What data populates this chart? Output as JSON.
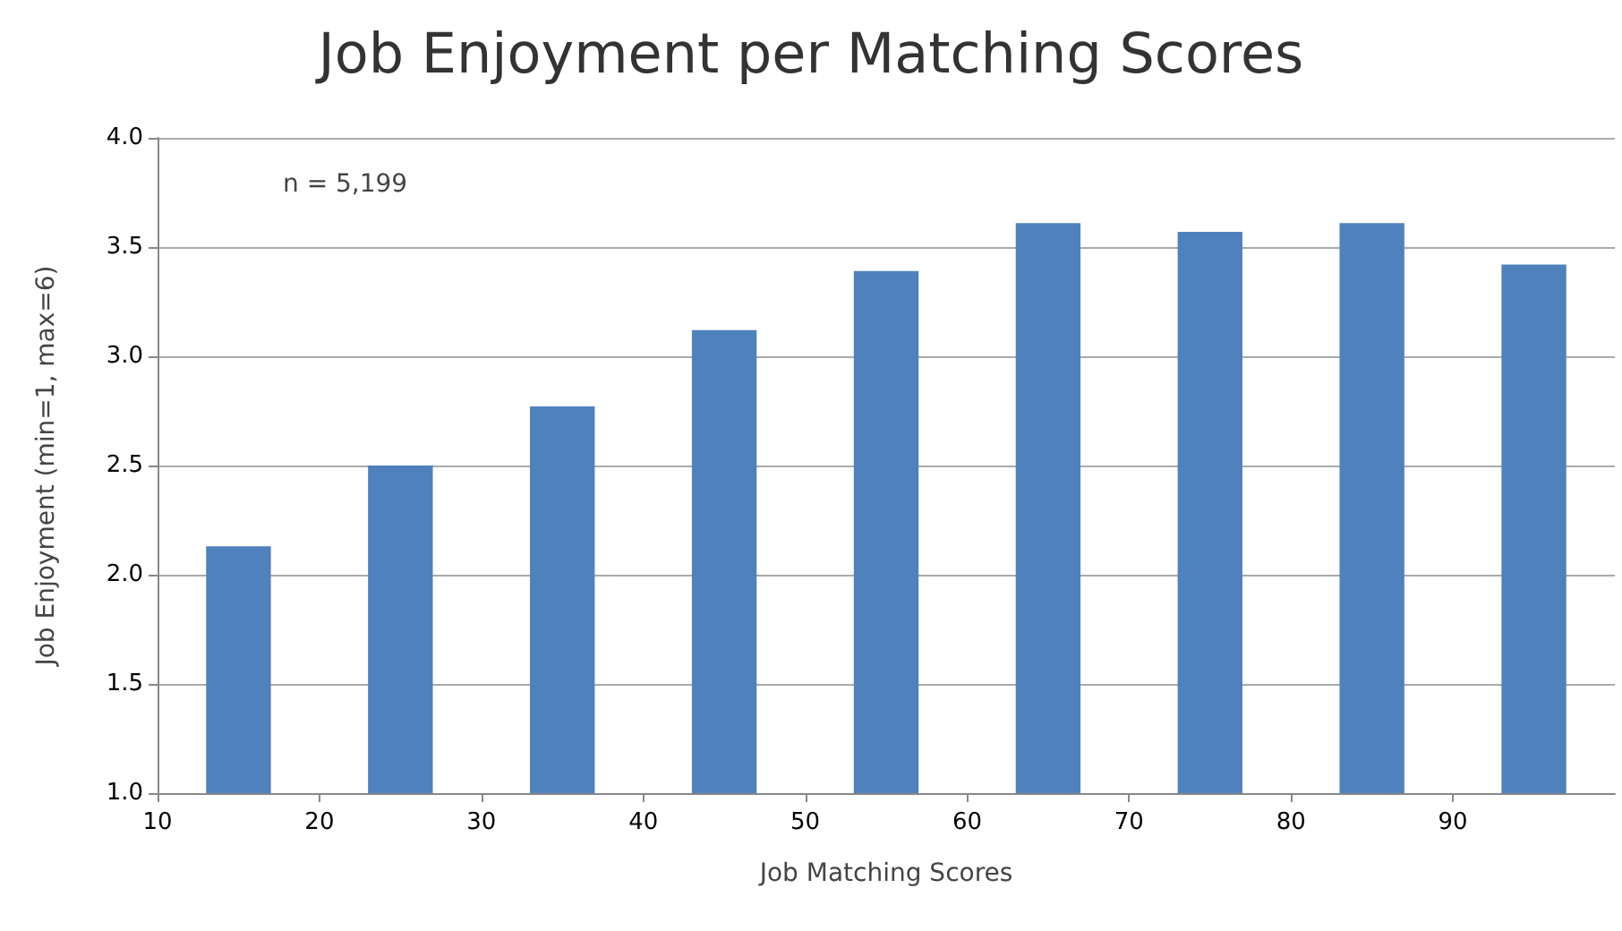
{
  "chart_data": {
    "type": "bar",
    "title": "Job Enjoyment per Matching Scores",
    "xlabel": "Job Matching Scores",
    "ylabel": "Job Enjoyment (min=1, max=6)",
    "annotations": [
      "n = 5,199"
    ],
    "x": [
      15,
      25,
      35,
      45,
      55,
      65,
      75,
      85,
      95
    ],
    "values": [
      2.13,
      2.5,
      2.77,
      3.12,
      3.39,
      3.61,
      3.57,
      3.61,
      3.42
    ],
    "color": "#4f81bd",
    "xlim": [
      10,
      100
    ],
    "xticks": [
      10,
      20,
      30,
      40,
      50,
      60,
      70,
      80,
      90
    ],
    "ylim": [
      1,
      4
    ],
    "yticks": [
      {
        "value": 1,
        "label": "1.0"
      },
      {
        "value": 1.5,
        "label": "1.5"
      },
      {
        "value": 2,
        "label": "2.0"
      },
      {
        "value": 2.5,
        "label": "2.5"
      },
      {
        "value": 3,
        "label": "3.0"
      },
      {
        "value": 3.5,
        "label": "3.5"
      },
      {
        "value": 4,
        "label": "4.0"
      }
    ],
    "grid": "y"
  }
}
